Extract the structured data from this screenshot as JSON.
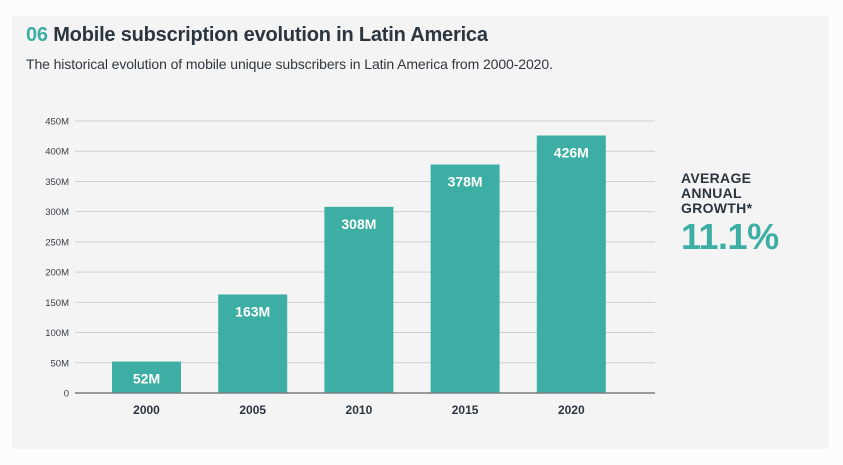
{
  "header": {
    "number": "06",
    "title": "Mobile subscription evolution in Latin America",
    "subtitle": "The historical evolution of mobile unique subscribers in Latin America from 2000-2020."
  },
  "callout": {
    "label_lines": [
      "AVERAGE",
      "ANNUAL",
      "GROWTH*"
    ],
    "value": "11.1%"
  },
  "colors": {
    "bar": "#3daea3",
    "accent": "#3daea3",
    "title": "#2b3540",
    "grid": "#cfcfcf",
    "axis": "#7a7f85"
  },
  "chart_data": {
    "type": "bar",
    "title": "Mobile subscription evolution in Latin America",
    "categories": [
      "2000",
      "2005",
      "2010",
      "2015",
      "2020"
    ],
    "values": [
      52,
      163,
      308,
      378,
      426
    ],
    "data_labels": [
      "52M",
      "163M",
      "308M",
      "378M",
      "426M"
    ],
    "unit": "M",
    "xlabel": "",
    "ylabel": "",
    "ylim": [
      0,
      450
    ],
    "yticks": [
      0,
      50,
      100,
      150,
      200,
      250,
      300,
      350,
      400,
      450
    ],
    "ytick_labels": [
      "0",
      "50M",
      "100M",
      "150M",
      "200M",
      "250M",
      "300M",
      "350M",
      "400M",
      "450M"
    ],
    "grid": true,
    "legend": "none"
  }
}
